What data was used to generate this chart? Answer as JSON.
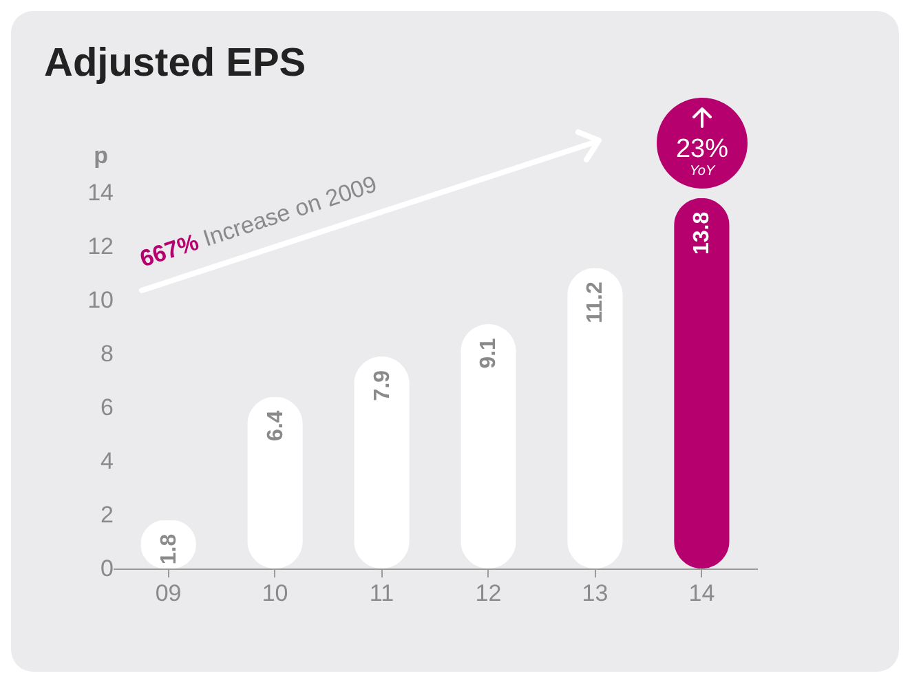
{
  "chart_data": {
    "type": "bar",
    "title": "Adjusted EPS",
    "ylabel": "p",
    "categories": [
      "09",
      "10",
      "11",
      "12",
      "13",
      "14"
    ],
    "values": [
      1.8,
      6.4,
      7.9,
      9.1,
      11.2,
      13.8
    ],
    "colors": [
      "#ffffff",
      "#ffffff",
      "#ffffff",
      "#ffffff",
      "#ffffff",
      "#b5006e"
    ],
    "ylim": [
      0,
      14
    ],
    "yticks": [
      0,
      2,
      4,
      6,
      8,
      10,
      12,
      14
    ],
    "grid": false,
    "data_labels": true,
    "annotations": [
      "667% Increase on 2009",
      "23% YoY"
    ]
  }
}
